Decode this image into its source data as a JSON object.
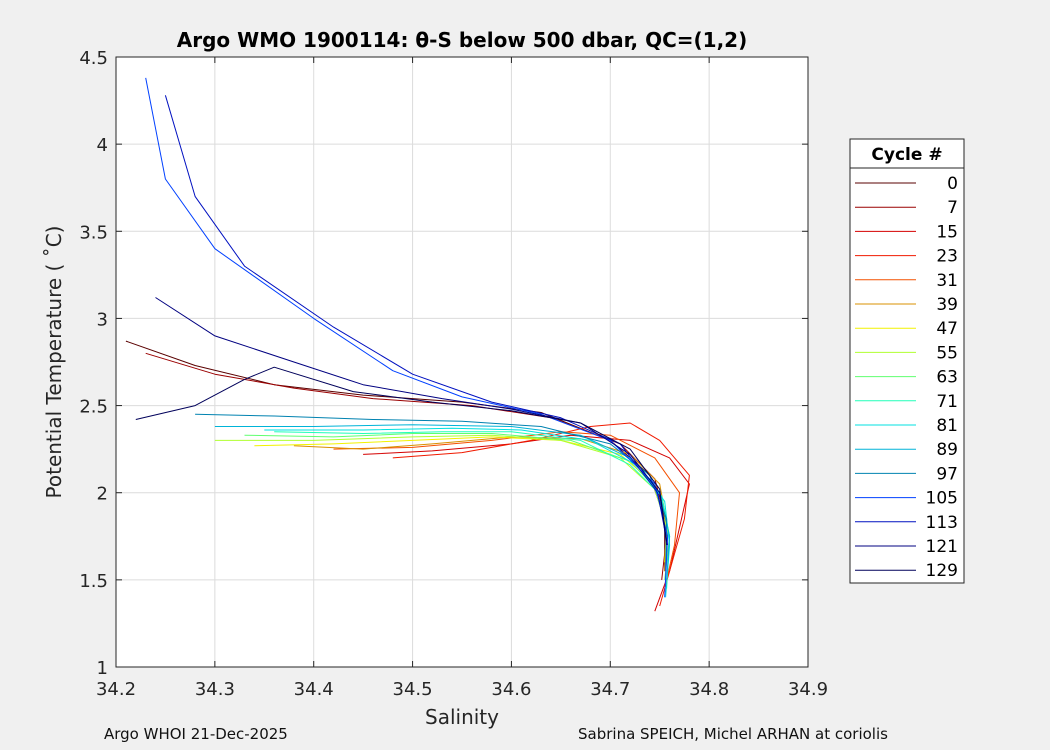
{
  "chart_data": {
    "type": "line",
    "title": "Argo WMO 1900114: θ-S below 500 dbar,  QC=(1,2)",
    "xlabel": "Salinity",
    "ylabel": "Potential Temperature ( ˚C)",
    "xlim": [
      34.2,
      34.9
    ],
    "ylim": [
      1,
      4.5
    ],
    "xticks": [
      34.2,
      34.3,
      34.4,
      34.5,
      34.6,
      34.7,
      34.8,
      34.9
    ],
    "yticks": [
      1,
      1.5,
      2,
      2.5,
      3,
      3.5,
      4,
      4.5
    ],
    "grid": true,
    "legend": {
      "title": "Cycle #",
      "position": "outside-right",
      "entries": [
        {
          "label": "0",
          "color": "#5a0000"
        },
        {
          "label": "7",
          "color": "#9a0000"
        },
        {
          "label": "15",
          "color": "#d40000"
        },
        {
          "label": "23",
          "color": "#f01a00"
        },
        {
          "label": "31",
          "color": "#f45000"
        },
        {
          "label": "39",
          "color": "#d89000"
        },
        {
          "label": "47",
          "color": "#f2f200"
        },
        {
          "label": "55",
          "color": "#b0ff30"
        },
        {
          "label": "63",
          "color": "#60ff70"
        },
        {
          "label": "71",
          "color": "#20ffb8"
        },
        {
          "label": "81",
          "color": "#00e0e0"
        },
        {
          "label": "89",
          "color": "#00b4d8"
        },
        {
          "label": "97",
          "color": "#0082b0"
        },
        {
          "label": "105",
          "color": "#0040ff"
        },
        {
          "label": "113",
          "color": "#0010c0"
        },
        {
          "label": "121",
          "color": "#000080"
        },
        {
          "label": "129",
          "color": "#00005a"
        }
      ]
    },
    "series_paths": [
      {
        "name": "cycle-0",
        "color": "#5a0000",
        "points": [
          [
            34.21,
            2.87
          ],
          [
            34.28,
            2.73
          ],
          [
            34.36,
            2.62
          ],
          [
            34.45,
            2.56
          ],
          [
            34.55,
            2.52
          ],
          [
            34.63,
            2.46
          ],
          [
            34.7,
            2.3
          ],
          [
            34.74,
            2.1
          ],
          [
            34.755,
            1.85
          ],
          [
            34.755,
            1.55
          ]
        ]
      },
      {
        "name": "cycle-7",
        "color": "#9a0000",
        "points": [
          [
            34.23,
            2.8
          ],
          [
            34.3,
            2.68
          ],
          [
            34.38,
            2.6
          ],
          [
            34.46,
            2.54
          ],
          [
            34.56,
            2.5
          ],
          [
            34.64,
            2.43
          ],
          [
            34.71,
            2.28
          ],
          [
            34.745,
            2.08
          ],
          [
            34.758,
            1.8
          ],
          [
            34.752,
            1.5
          ]
        ]
      },
      {
        "name": "cycle-15",
        "color": "#d40000",
        "points": [
          [
            34.45,
            2.22
          ],
          [
            34.52,
            2.24
          ],
          [
            34.6,
            2.28
          ],
          [
            34.66,
            2.33
          ],
          [
            34.72,
            2.3
          ],
          [
            34.76,
            2.2
          ],
          [
            34.78,
            2.05
          ],
          [
            34.77,
            1.8
          ],
          [
            34.76,
            1.55
          ],
          [
            34.745,
            1.32
          ]
        ]
      },
      {
        "name": "cycle-23",
        "color": "#f01a00",
        "points": [
          [
            34.48,
            2.2
          ],
          [
            34.55,
            2.23
          ],
          [
            34.62,
            2.3
          ],
          [
            34.68,
            2.38
          ],
          [
            34.72,
            2.4
          ],
          [
            34.75,
            2.3
          ],
          [
            34.78,
            2.1
          ],
          [
            34.775,
            1.85
          ],
          [
            34.76,
            1.55
          ],
          [
            34.75,
            1.35
          ]
        ]
      },
      {
        "name": "cycle-31",
        "color": "#f45000",
        "points": [
          [
            34.42,
            2.25
          ],
          [
            34.5,
            2.26
          ],
          [
            34.58,
            2.3
          ],
          [
            34.65,
            2.35
          ],
          [
            34.7,
            2.33
          ],
          [
            34.745,
            2.2
          ],
          [
            34.77,
            2.0
          ],
          [
            34.765,
            1.7
          ],
          [
            34.755,
            1.45
          ]
        ]
      },
      {
        "name": "cycle-39",
        "color": "#d89000",
        "points": [
          [
            34.38,
            2.27
          ],
          [
            34.45,
            2.25
          ],
          [
            34.52,
            2.28
          ],
          [
            34.6,
            2.32
          ],
          [
            34.67,
            2.31
          ],
          [
            34.72,
            2.22
          ],
          [
            34.75,
            2.05
          ],
          [
            34.758,
            1.8
          ],
          [
            34.755,
            1.55
          ]
        ]
      },
      {
        "name": "cycle-47",
        "color": "#f2f200",
        "points": [
          [
            34.34,
            2.27
          ],
          [
            34.42,
            2.28
          ],
          [
            34.5,
            2.3
          ],
          [
            34.58,
            2.32
          ],
          [
            34.65,
            2.3
          ],
          [
            34.71,
            2.22
          ],
          [
            34.745,
            2.05
          ],
          [
            34.757,
            1.8
          ],
          [
            34.755,
            1.6
          ]
        ]
      },
      {
        "name": "cycle-55",
        "color": "#b0ff30",
        "points": [
          [
            34.3,
            2.3
          ],
          [
            34.4,
            2.3
          ],
          [
            34.5,
            2.32
          ],
          [
            34.58,
            2.33
          ],
          [
            34.65,
            2.3
          ],
          [
            34.71,
            2.2
          ],
          [
            34.745,
            2.02
          ],
          [
            34.758,
            1.78
          ],
          [
            34.756,
            1.55
          ]
        ]
      },
      {
        "name": "cycle-63",
        "color": "#60ff70",
        "points": [
          [
            34.33,
            2.33
          ],
          [
            34.42,
            2.32
          ],
          [
            34.5,
            2.34
          ],
          [
            34.58,
            2.34
          ],
          [
            34.66,
            2.3
          ],
          [
            34.72,
            2.18
          ],
          [
            34.75,
            2.0
          ],
          [
            34.76,
            1.75
          ],
          [
            34.755,
            1.5
          ]
        ]
      },
      {
        "name": "cycle-71",
        "color": "#20ffb8",
        "points": [
          [
            34.36,
            2.35
          ],
          [
            34.45,
            2.34
          ],
          [
            34.53,
            2.35
          ],
          [
            34.6,
            2.35
          ],
          [
            34.67,
            2.3
          ],
          [
            34.72,
            2.16
          ],
          [
            34.752,
            1.98
          ],
          [
            34.76,
            1.75
          ],
          [
            34.757,
            1.45
          ]
        ]
      },
      {
        "name": "cycle-81",
        "color": "#00e0e0",
        "points": [
          [
            34.35,
            2.36
          ],
          [
            34.45,
            2.36
          ],
          [
            34.54,
            2.37
          ],
          [
            34.61,
            2.36
          ],
          [
            34.68,
            2.3
          ],
          [
            34.73,
            2.15
          ],
          [
            34.755,
            1.95
          ],
          [
            34.76,
            1.7
          ],
          [
            34.756,
            1.4
          ]
        ]
      },
      {
        "name": "cycle-89",
        "color": "#00b4d8",
        "points": [
          [
            34.3,
            2.38
          ],
          [
            34.4,
            2.38
          ],
          [
            34.5,
            2.39
          ],
          [
            34.6,
            2.38
          ],
          [
            34.67,
            2.33
          ],
          [
            34.72,
            2.2
          ],
          [
            34.75,
            2.0
          ],
          [
            34.76,
            1.75
          ],
          [
            34.757,
            1.5
          ]
        ]
      },
      {
        "name": "cycle-97",
        "color": "#0082b0",
        "points": [
          [
            34.28,
            2.45
          ],
          [
            34.36,
            2.44
          ],
          [
            34.46,
            2.42
          ],
          [
            34.55,
            2.41
          ],
          [
            34.63,
            2.38
          ],
          [
            34.7,
            2.28
          ],
          [
            34.74,
            2.1
          ],
          [
            34.757,
            1.85
          ],
          [
            34.756,
            1.55
          ]
        ]
      },
      {
        "name": "cycle-105",
        "color": "#0040ff",
        "points": [
          [
            34.23,
            4.38
          ],
          [
            34.25,
            3.8
          ],
          [
            34.3,
            3.4
          ],
          [
            34.4,
            3.0
          ],
          [
            34.48,
            2.7
          ],
          [
            34.55,
            2.55
          ],
          [
            34.63,
            2.45
          ],
          [
            34.7,
            2.3
          ],
          [
            34.745,
            2.05
          ],
          [
            34.758,
            1.75
          ],
          [
            34.755,
            1.4
          ]
        ]
      },
      {
        "name": "cycle-113",
        "color": "#0010c0",
        "points": [
          [
            34.25,
            4.28
          ],
          [
            34.28,
            3.7
          ],
          [
            34.33,
            3.3
          ],
          [
            34.42,
            2.95
          ],
          [
            34.5,
            2.68
          ],
          [
            34.58,
            2.52
          ],
          [
            34.65,
            2.43
          ],
          [
            34.71,
            2.28
          ],
          [
            34.748,
            2.0
          ],
          [
            34.758,
            1.7
          ]
        ]
      },
      {
        "name": "cycle-121",
        "color": "#000080",
        "points": [
          [
            34.24,
            3.12
          ],
          [
            34.3,
            2.9
          ],
          [
            34.38,
            2.75
          ],
          [
            34.45,
            2.62
          ],
          [
            34.53,
            2.54
          ],
          [
            34.6,
            2.48
          ],
          [
            34.67,
            2.4
          ],
          [
            34.72,
            2.22
          ],
          [
            34.75,
            2.0
          ],
          [
            34.757,
            1.7
          ]
        ]
      },
      {
        "name": "cycle-129",
        "color": "#00005a",
        "points": [
          [
            34.22,
            2.42
          ],
          [
            34.28,
            2.5
          ],
          [
            34.33,
            2.65
          ],
          [
            34.36,
            2.72
          ],
          [
            34.44,
            2.58
          ],
          [
            34.52,
            2.52
          ],
          [
            34.6,
            2.47
          ],
          [
            34.67,
            2.4
          ],
          [
            34.72,
            2.25
          ],
          [
            34.75,
            2.02
          ],
          [
            34.757,
            1.72
          ]
        ]
      }
    ]
  },
  "footer": {
    "left": "Argo WHOI 21-Dec-2025",
    "right": "Sabrina SPEICH, Michel ARHAN at coriolis"
  }
}
